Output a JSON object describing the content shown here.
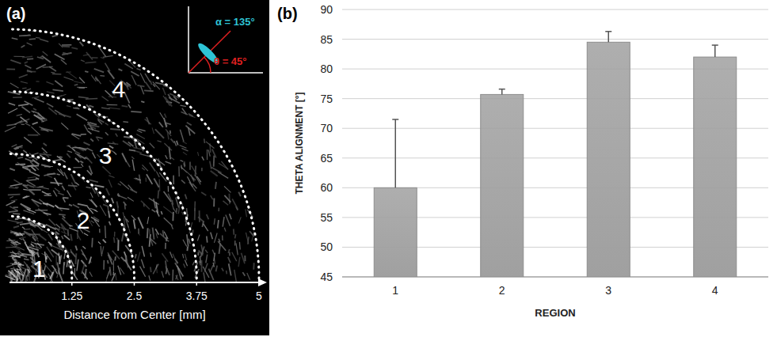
{
  "chart_data": [
    {
      "type": "image",
      "title": "(a)",
      "xlabel": "Distance from Center [mm]",
      "xlim": [
        0,
        5
      ],
      "xticks": [
        1.25,
        2.5,
        3.75,
        5
      ],
      "regions": [
        {
          "label": "1",
          "inner": 0,
          "outer": 1.25
        },
        {
          "label": "2",
          "inner": 1.25,
          "outer": 2.5
        },
        {
          "label": "3",
          "inner": 2.5,
          "outer": 3.75
        },
        {
          "label": "4",
          "inner": 3.75,
          "outer": 5
        }
      ],
      "annotations": [
        {
          "text": "α = 135°",
          "angle": 135,
          "color": "#2ec4d6"
        },
        {
          "text": "θ = 45°",
          "angle": 45,
          "color": "#e02020"
        }
      ]
    },
    {
      "type": "bar",
      "title": "(b)",
      "xlabel": "REGION",
      "ylabel": "THETA ALIGNMENT [°]",
      "categories": [
        "1",
        "2",
        "3",
        "4"
      ],
      "values": [
        60,
        75.7,
        84.5,
        82
      ],
      "errors": [
        11.5,
        0.9,
        1.8,
        2.0
      ],
      "color": "#a0a0a0",
      "ylim": [
        45,
        90
      ],
      "yticks": [
        45,
        50,
        55,
        60,
        65,
        70,
        75,
        80,
        85,
        90
      ],
      "grid": true
    }
  ]
}
